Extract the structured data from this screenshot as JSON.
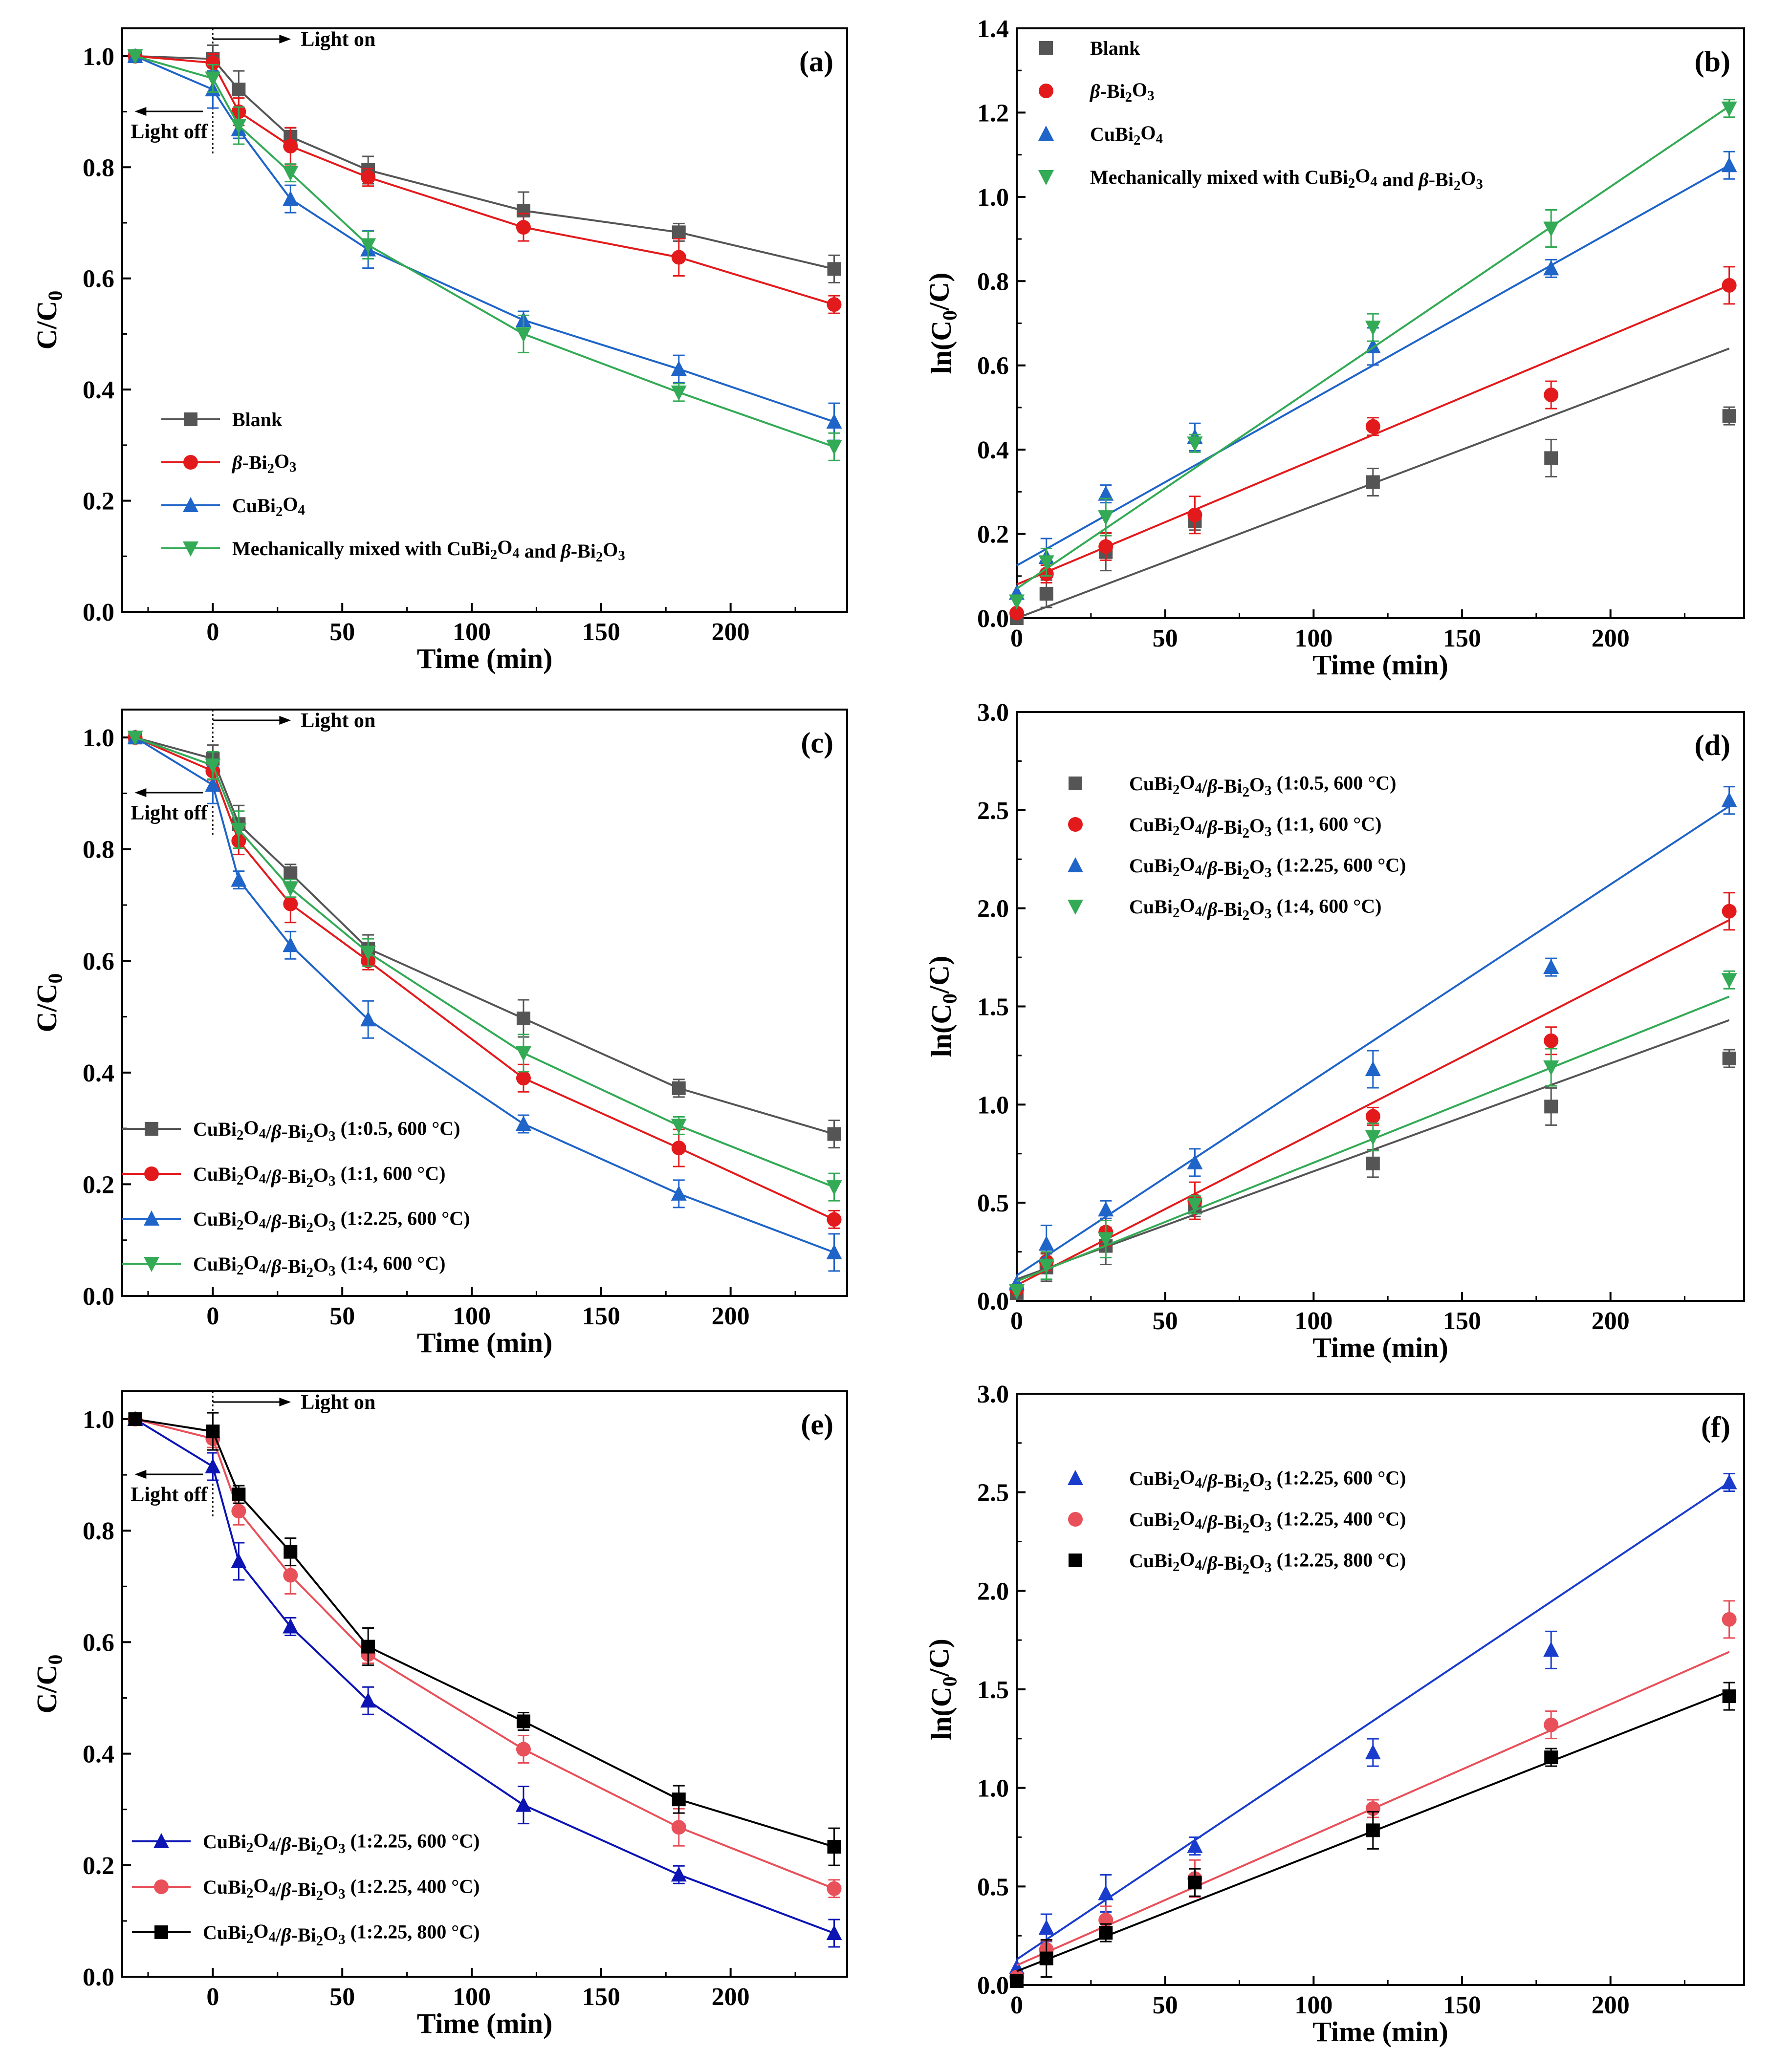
{
  "colors": {
    "black": "#000000",
    "gray": "#555555",
    "red": "#e31a1c",
    "blue": "#1f64c8",
    "green": "#33aa55",
    "navy": "#0c14b4",
    "red_light": "#e8505a",
    "blue_tri": "#1a3ccc"
  },
  "chart_data": [
    {
      "label": "(a)",
      "type": "line",
      "x_label_main": "Time (min)",
      "y_label": "C/C0",
      "xlim": [
        -35,
        245
      ],
      "ylim": [
        0,
        1.05
      ],
      "xticks": [
        "0",
        "50",
        "100",
        "150",
        "200"
      ],
      "yticks": [
        "0.0",
        "0.2",
        "0.4",
        "0.6",
        "0.8",
        "1.0"
      ],
      "annotations": {
        "light_on": "Light on",
        "light_off": "Light off"
      },
      "legend_position": "lower-left",
      "x": [
        -30,
        0,
        10,
        30,
        60,
        120,
        180,
        240
      ],
      "series": [
        {
          "name": "Blank",
          "color": "#555555",
          "marker": "square",
          "values": [
            1.0,
            0.995,
            0.94,
            0.855,
            0.795,
            0.722,
            0.683,
            0.617
          ]
        },
        {
          "name": "β-Bi2O3",
          "color": "#e31a1c",
          "marker": "circle",
          "values": [
            1.0,
            0.988,
            0.9,
            0.838,
            0.782,
            0.692,
            0.638,
            0.553
          ]
        },
        {
          "name": "CuBi2O4",
          "color": "#1f64c8",
          "marker": "triangle-up",
          "values": [
            1.0,
            0.94,
            0.868,
            0.743,
            0.652,
            0.525,
            0.437,
            0.342
          ]
        },
        {
          "name": "Mechanically mixed with CuBi2O4 and β-Bi2O3",
          "color": "#33aa55",
          "marker": "triangle-down",
          "values": [
            1.0,
            0.96,
            0.875,
            0.79,
            0.66,
            0.5,
            0.395,
            0.297
          ]
        }
      ]
    },
    {
      "label": "(b)",
      "type": "scatter",
      "x_label_main": "Time (min)",
      "y_label": "ln(C0/C)",
      "xlim": [
        0,
        245
      ],
      "ylim": [
        0,
        1.4
      ],
      "xticks": [
        "0",
        "50",
        "100",
        "150",
        "200"
      ],
      "yticks": [
        "0.0",
        "0.2",
        "0.4",
        "0.6",
        "0.8",
        "1.0",
        "1.2",
        "1.4"
      ],
      "legend_position": "top-left",
      "x": [
        0,
        10,
        30,
        60,
        120,
        180,
        240
      ],
      "series": [
        {
          "name": "Blank",
          "color": "#555555",
          "marker": "square",
          "values": [
            0.0,
            0.058,
            0.157,
            0.23,
            0.323,
            0.38,
            0.48
          ],
          "fit": [
            0.0,
            0.64
          ]
        },
        {
          "name": "β-Bi2O3",
          "color": "#e31a1c",
          "marker": "circle",
          "values": [
            0.012,
            0.105,
            0.17,
            0.245,
            0.455,
            0.53,
            0.79
          ],
          "fit": [
            0.08,
            0.79
          ]
        },
        {
          "name": "CuBi2O4",
          "color": "#1f64c8",
          "marker": "triangle-up",
          "values": [
            0.06,
            0.145,
            0.295,
            0.43,
            0.645,
            0.83,
            1.075
          ],
          "fit": [
            0.125,
            1.075
          ]
        },
        {
          "name": "Mechanically mixed with CuBi2O4 and β-Bi2O3",
          "color": "#33aa55",
          "marker": "triangle-down",
          "values": [
            0.04,
            0.133,
            0.24,
            0.415,
            0.69,
            0.925,
            1.21
          ],
          "fit": [
            0.07,
            1.215
          ]
        }
      ]
    },
    {
      "label": "(c)",
      "type": "line",
      "x_label_main": "Time (min)",
      "y_label": "C/C0",
      "xlim": [
        -35,
        245
      ],
      "ylim": [
        0,
        1.05
      ],
      "xticks": [
        "0",
        "50",
        "100",
        "150",
        "200"
      ],
      "yticks": [
        "0.0",
        "0.2",
        "0.4",
        "0.6",
        "0.8",
        "1.0"
      ],
      "annotations": {
        "light_on": "Light on",
        "light_off": "Light off"
      },
      "legend_position": "lower-left",
      "x": [
        -30,
        0,
        10,
        30,
        60,
        120,
        180,
        240
      ],
      "series": [
        {
          "name": "CuBi2O4/β-Bi2O3 (1:0.5, 600 °C)",
          "color": "#555555",
          "marker": "square",
          "values": [
            1.0,
            0.962,
            0.845,
            0.757,
            0.622,
            0.497,
            0.372,
            0.29
          ]
        },
        {
          "name": "CuBi2O4/β-Bi2O3 (1:1, 600 °C)",
          "color": "#e31a1c",
          "marker": "circle",
          "values": [
            1.0,
            0.94,
            0.815,
            0.702,
            0.6,
            0.39,
            0.265,
            0.137
          ]
        },
        {
          "name": "CuBi2O4/β-Bi2O3 (1:2.25, 600 °C)",
          "color": "#1f64c8",
          "marker": "triangle-up",
          "values": [
            1.0,
            0.915,
            0.745,
            0.628,
            0.495,
            0.308,
            0.183,
            0.078
          ]
        },
        {
          "name": "CuBi2O4/β-Bi2O3 (1:4, 600 °C)",
          "color": "#33aa55",
          "marker": "triangle-down",
          "values": [
            1.0,
            0.95,
            0.835,
            0.73,
            0.615,
            0.435,
            0.305,
            0.195
          ]
        }
      ]
    },
    {
      "label": "(d)",
      "type": "scatter",
      "x_label_main": "Time (min)",
      "y_label": "ln(C0/C)",
      "xlim": [
        0,
        245
      ],
      "ylim": [
        0,
        3.0
      ],
      "xticks": [
        "0",
        "50",
        "100",
        "150",
        "200"
      ],
      "yticks": [
        "0.0",
        "0.5",
        "1.0",
        "1.5",
        "2.0",
        "2.5",
        "3.0"
      ],
      "legend_position": "top-left",
      "x": [
        0,
        10,
        30,
        60,
        120,
        180,
        240
      ],
      "series": [
        {
          "name": "CuBi2O4/β-Bi2O3 (1:0.5, 600 °C)",
          "color": "#555555",
          "marker": "square",
          "values": [
            0.04,
            0.17,
            0.28,
            0.475,
            0.7,
            0.99,
            1.235
          ],
          "fit": [
            0.11,
            1.43
          ]
        },
        {
          "name": "CuBi2O4/β-Bi2O3 (1:1, 600 °C)",
          "color": "#e31a1c",
          "marker": "circle",
          "values": [
            0.06,
            0.2,
            0.35,
            0.51,
            0.94,
            1.325,
            1.985
          ],
          "fit": [
            0.08,
            1.94
          ]
        },
        {
          "name": "CuBi2O4/β-Bi2O3 (1:2.25, 600 °C)",
          "color": "#1f64c8",
          "marker": "triangle-up",
          "values": [
            0.09,
            0.29,
            0.465,
            0.705,
            1.18,
            1.7,
            2.55
          ],
          "fit": [
            0.13,
            2.52
          ]
        },
        {
          "name": "CuBi2O4/β-Bi2O3 (1:4, 600 °C)",
          "color": "#33aa55",
          "marker": "triangle-down",
          "values": [
            0.05,
            0.18,
            0.315,
            0.49,
            0.835,
            1.19,
            1.635
          ],
          "fit": [
            0.1,
            1.55
          ]
        }
      ]
    },
    {
      "label": "(e)",
      "type": "line",
      "x_label_main": "Time (min)",
      "y_label": "C/C0",
      "xlim": [
        -35,
        245
      ],
      "ylim": [
        0,
        1.05
      ],
      "xticks": [
        "0",
        "50",
        "100",
        "150",
        "200"
      ],
      "yticks": [
        "0.0",
        "0.2",
        "0.4",
        "0.6",
        "0.8",
        "1.0"
      ],
      "annotations": {
        "light_on": "Light on",
        "light_off": "Light off"
      },
      "legend_position": "lower-left",
      "x": [
        -30,
        0,
        10,
        30,
        60,
        120,
        180,
        240
      ],
      "series": [
        {
          "name": "CuBi2O4/β-Bi2O3 (1:2.25, 600 °C)",
          "color": "#0c14b4",
          "marker": "triangle-up",
          "values": [
            1.0,
            0.915,
            0.745,
            0.628,
            0.495,
            0.308,
            0.183,
            0.078
          ]
        },
        {
          "name": "CuBi2O4/β-Bi2O3 (1:2.25, 400 °C)",
          "color": "#e8505a",
          "marker": "circle",
          "values": [
            1.0,
            0.965,
            0.835,
            0.72,
            0.578,
            0.408,
            0.268,
            0.158
          ]
        },
        {
          "name": "CuBi2O4/β-Bi2O3 (1:2.25, 800 °C)",
          "color": "#000000",
          "marker": "square",
          "values": [
            1.0,
            0.978,
            0.865,
            0.762,
            0.592,
            0.458,
            0.318,
            0.233
          ]
        }
      ]
    },
    {
      "label": "(f)",
      "type": "scatter",
      "x_label_main": "Time (min)",
      "y_label": "ln(C0/C)",
      "xlim": [
        0,
        245
      ],
      "ylim": [
        0,
        3.0
      ],
      "xticks": [
        "0",
        "50",
        "100",
        "150",
        "200"
      ],
      "yticks": [
        "0.0",
        "0.5",
        "1.0",
        "1.5",
        "2.0",
        "2.5",
        "3.0"
      ],
      "legend_position": "top-left",
      "x": [
        0,
        10,
        30,
        60,
        120,
        180,
        240
      ],
      "series": [
        {
          "name": "CuBi2O4/β-Bi2O3 (1:2.25, 600 °C)",
          "color": "#1a3ccc",
          "marker": "triangle-up",
          "values": [
            0.09,
            0.29,
            0.465,
            0.705,
            1.18,
            1.7,
            2.55
          ],
          "fit": [
            0.13,
            2.55
          ]
        },
        {
          "name": "CuBi2O4/β-Bi2O3 (1:2.25, 400 °C)",
          "color": "#e8505a",
          "marker": "circle",
          "values": [
            0.04,
            0.18,
            0.33,
            0.54,
            0.895,
            1.32,
            1.855
          ],
          "fit": [
            0.1,
            1.69
          ]
        },
        {
          "name": "CuBi2O4/β-Bi2O3 (1:2.25, 800 °C)",
          "color": "#000000",
          "marker": "square",
          "values": [
            0.02,
            0.135,
            0.265,
            0.52,
            0.785,
            1.155,
            1.465
          ],
          "fit": [
            0.07,
            1.49
          ]
        }
      ]
    }
  ]
}
